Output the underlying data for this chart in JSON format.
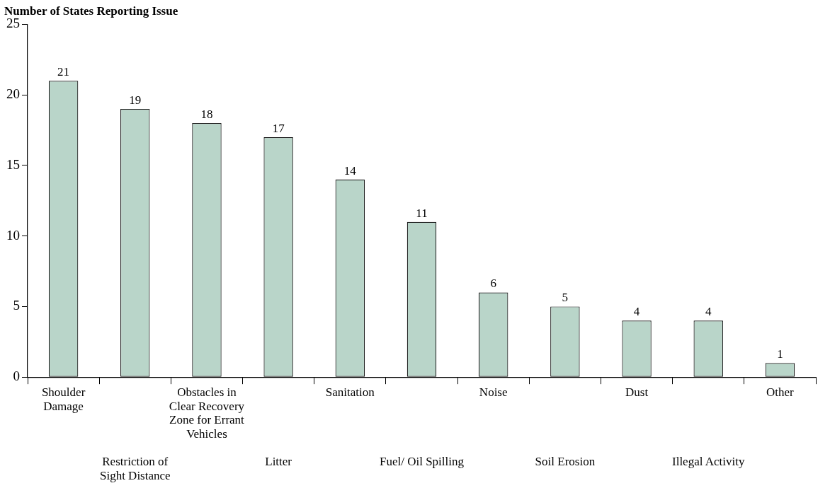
{
  "chart_data": {
    "type": "bar",
    "title": "Number of States Reporting Issue",
    "categories": [
      "Shoulder Damage",
      "Restriction of Sight Distance",
      "Obstacles in Clear Recovery Zone for Errant Vehicles",
      "Litter",
      "Sanitation",
      "Fuel/ Oil Spilling",
      "Noise",
      "Soil Erosion",
      "Dust",
      "Illegal Activity",
      "Other"
    ],
    "values": [
      21,
      19,
      18,
      17,
      14,
      11,
      6,
      5,
      4,
      4,
      1
    ],
    "color": "#b9d5c9",
    "ylim": [
      0,
      25
    ],
    "yticks": [
      0,
      5,
      10,
      15,
      20,
      25
    ],
    "data_labels": true,
    "grid": false,
    "legend": false
  }
}
